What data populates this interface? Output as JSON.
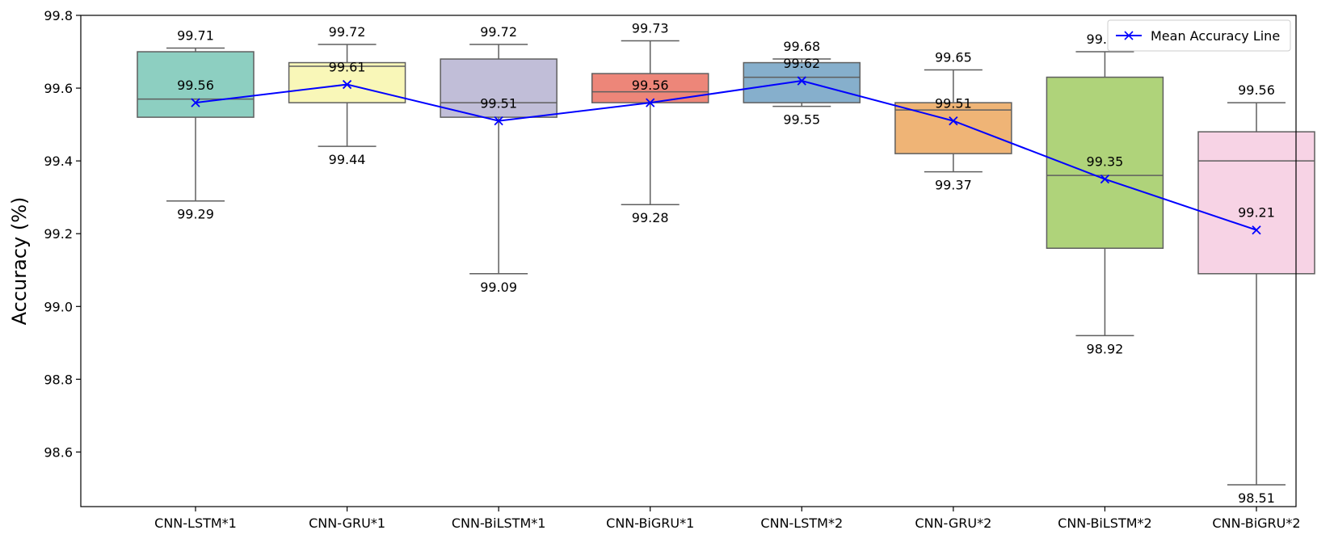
{
  "chart_data": {
    "type": "box",
    "title": "",
    "xlabel": "",
    "ylabel": "Accuracy (%)",
    "ylim": [
      98.45,
      99.8
    ],
    "yticks": [
      "98.6",
      "98.8",
      "99.0",
      "99.2",
      "99.4",
      "99.6",
      "99.8"
    ],
    "grid": false,
    "legend_position": "top-right",
    "categories": [
      "CNN-LSTM*1",
      "CNN-GRU*1",
      "CNN-BiLSTM*1",
      "CNN-BiGRU*1",
      "CNN-LSTM*2",
      "CNN-GRU*2",
      "CNN-BiLSTM*2",
      "CNN-BiGRU*2"
    ],
    "boxes": [
      {
        "min": 99.29,
        "q1": 99.52,
        "median": 99.57,
        "q3": 99.7,
        "max": 99.71,
        "mean": 99.56,
        "color": "#8dcfc1",
        "labels": {
          "max": "99.71",
          "mean": "99.56",
          "min": "99.29"
        }
      },
      {
        "min": 99.44,
        "q1": 99.56,
        "median": 99.66,
        "q3": 99.67,
        "max": 99.72,
        "mean": 99.61,
        "color": "#f9f7b8",
        "labels": {
          "max": "99.72",
          "mean": "99.61",
          "min": "99.44"
        }
      },
      {
        "min": 99.09,
        "q1": 99.52,
        "median": 99.56,
        "q3": 99.68,
        "max": 99.72,
        "mean": 99.51,
        "color": "#c1bed8",
        "labels": {
          "max": "99.72",
          "mean": "99.51",
          "min": "99.09"
        }
      },
      {
        "min": 99.28,
        "q1": 99.56,
        "median": 99.59,
        "q3": 99.64,
        "max": 99.73,
        "mean": 99.56,
        "color": "#ed8679",
        "labels": {
          "max": "99.73",
          "mean": "99.56",
          "min": "99.28"
        }
      },
      {
        "min": 99.55,
        "q1": 99.56,
        "median": 99.63,
        "q3": 99.67,
        "max": 99.68,
        "mean": 99.62,
        "color": "#86afcc",
        "labels": {
          "max": "99.68",
          "mean": "99.62",
          "min": "99.55"
        }
      },
      {
        "min": 99.37,
        "q1": 99.42,
        "median": 99.54,
        "q3": 99.56,
        "max": 99.65,
        "mean": 99.51,
        "color": "#efb476",
        "labels": {
          "max": "99.65",
          "mean": "99.51",
          "min": "99.37"
        }
      },
      {
        "min": 98.92,
        "q1": 99.16,
        "median": 99.36,
        "q3": 99.63,
        "max": 99.7,
        "mean": 99.35,
        "color": "#afd37a",
        "labels": {
          "max": "99.70",
          "mean": "99.35",
          "min": "98.92"
        }
      },
      {
        "min": 98.51,
        "q1": 99.09,
        "median": 99.4,
        "q3": 99.48,
        "max": 99.56,
        "mean": 99.21,
        "color": "#f7d3e5",
        "labels": {
          "max": "99.56",
          "mean": "99.21",
          "min": "98.51"
        }
      }
    ],
    "mean_line": {
      "name": "Mean Accuracy Line",
      "color": "#0000ff",
      "marker": "x"
    }
  }
}
